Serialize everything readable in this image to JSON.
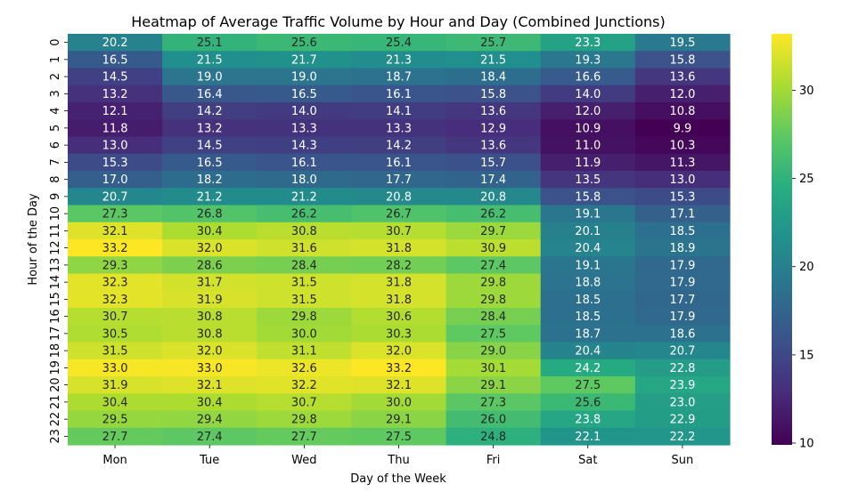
{
  "chart_data": {
    "type": "heatmap",
    "title": "Heatmap of Average Traffic Volume by Hour and Day (Combined Junctions)",
    "xlabel": "Day of the Week",
    "ylabel": "Hour of the Day",
    "x_categories": [
      "Mon",
      "Tue",
      "Wed",
      "Thu",
      "Fri",
      "Sat",
      "Sun"
    ],
    "y_categories": [
      "0",
      "1",
      "2",
      "3",
      "4",
      "5",
      "6",
      "7",
      "8",
      "9",
      "10",
      "11",
      "12",
      "13",
      "14",
      "15",
      "16",
      "17",
      "18",
      "19",
      "20",
      "21",
      "22",
      "23"
    ],
    "values": [
      [
        20.2,
        25.1,
        25.6,
        25.4,
        25.7,
        23.3,
        19.5
      ],
      [
        16.5,
        21.5,
        21.7,
        21.3,
        21.5,
        19.3,
        15.8
      ],
      [
        14.5,
        19.0,
        19.0,
        18.7,
        18.4,
        16.6,
        13.6
      ],
      [
        13.2,
        16.4,
        16.5,
        16.1,
        15.8,
        14.0,
        12.0
      ],
      [
        12.1,
        14.2,
        14.0,
        14.1,
        13.6,
        12.0,
        10.8
      ],
      [
        11.8,
        13.2,
        13.3,
        13.3,
        12.9,
        10.9,
        9.9
      ],
      [
        13.0,
        14.5,
        14.3,
        14.2,
        13.6,
        11.0,
        10.3
      ],
      [
        15.3,
        16.5,
        16.1,
        16.1,
        15.7,
        11.9,
        11.3
      ],
      [
        17.0,
        18.2,
        18.0,
        17.7,
        17.4,
        13.5,
        13.0
      ],
      [
        20.7,
        21.2,
        21.2,
        20.8,
        20.8,
        15.8,
        15.3
      ],
      [
        27.3,
        26.8,
        26.2,
        26.7,
        26.2,
        19.1,
        17.1
      ],
      [
        32.1,
        30.4,
        30.8,
        30.7,
        29.7,
        20.1,
        18.5
      ],
      [
        33.2,
        32.0,
        31.6,
        31.8,
        30.9,
        20.4,
        18.9
      ],
      [
        29.3,
        28.6,
        28.4,
        28.2,
        27.4,
        19.1,
        17.9
      ],
      [
        32.3,
        31.7,
        31.5,
        31.8,
        29.8,
        18.8,
        17.9
      ],
      [
        32.3,
        31.9,
        31.5,
        31.8,
        29.8,
        18.5,
        17.7
      ],
      [
        30.7,
        30.8,
        29.8,
        30.6,
        28.4,
        18.5,
        17.9
      ],
      [
        30.5,
        30.8,
        30.0,
        30.3,
        27.5,
        18.7,
        18.6
      ],
      [
        31.5,
        32.0,
        31.1,
        32.0,
        29.0,
        20.4,
        20.7
      ],
      [
        33.0,
        33.0,
        32.6,
        33.2,
        30.1,
        24.2,
        22.8
      ],
      [
        31.9,
        32.1,
        32.2,
        32.1,
        29.1,
        27.5,
        23.9
      ],
      [
        30.4,
        30.4,
        30.7,
        30.0,
        27.3,
        25.6,
        23.0
      ],
      [
        29.5,
        29.4,
        29.8,
        29.1,
        26.0,
        23.8,
        22.9
      ],
      [
        27.7,
        27.4,
        27.7,
        27.5,
        24.8,
        22.1,
        22.2
      ]
    ],
    "value_range": [
      9.9,
      33.2
    ],
    "colormap": "viridis",
    "colorbar_ticks": [
      10,
      15,
      20,
      25,
      30
    ],
    "annotated": true,
    "grid": false
  }
}
